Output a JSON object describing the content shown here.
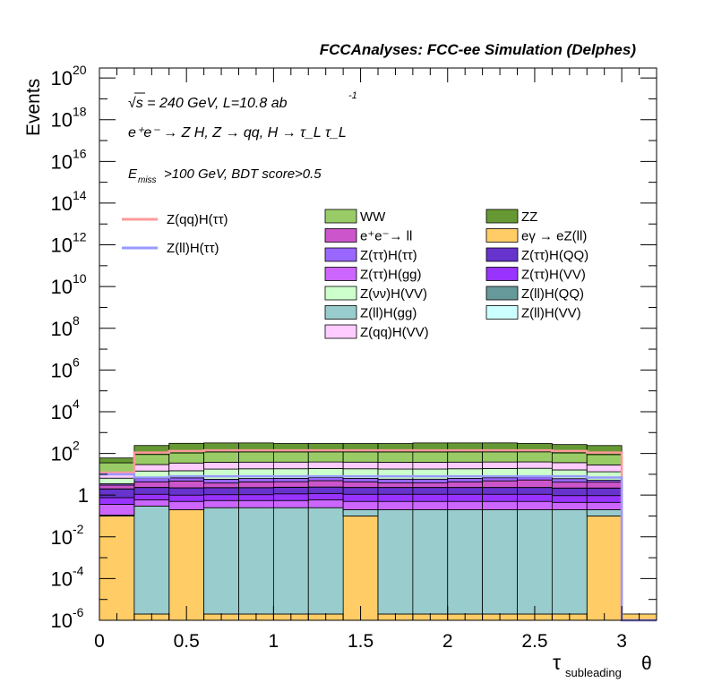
{
  "chart_data": {
    "type": "bar",
    "title": "FCCAnalyses: FCC-ee Simulation (Delphes)",
    "xlabel": {
      "main": "τ",
      "sub": "subleading",
      "tail": "θ"
    },
    "ylabel": "Events",
    "y_scale": "log",
    "xlim": [
      0,
      3.2
    ],
    "ylim": [
      1e-06,
      3e+20
    ],
    "annotations": {
      "energy": {
        "prefix": "√s = 240 GeV, L=10.8 ab",
        "sup": "-1"
      },
      "process": "e⁺e⁻ → Z H, Z → qq, H → τ_L τ_L",
      "cut": {
        "E": "E",
        "sub": "miss",
        "rest": ">100 GeV, BDT score>0.5"
      }
    },
    "x_ticks": [
      "0",
      "0.5",
      "1",
      "1.5",
      "2",
      "2.5",
      "3"
    ],
    "y_ticks": [
      {
        "v": 1e+20,
        "label": "10",
        "exp": "20"
      },
      {
        "v": 1e+18,
        "label": "10",
        "exp": "18"
      },
      {
        "v": 1e+16,
        "label": "10",
        "exp": "16"
      },
      {
        "v": 100000000000000.0,
        "label": "10",
        "exp": "14"
      },
      {
        "v": 1000000000000.0,
        "label": "10",
        "exp": "12"
      },
      {
        "v": 10000000000.0,
        "label": "10",
        "exp": "10"
      },
      {
        "v": 100000000.0,
        "label": "10",
        "exp": "8"
      },
      {
        "v": 1000000.0,
        "label": "10",
        "exp": "6"
      },
      {
        "v": 10000.0,
        "label": "10",
        "exp": "4"
      },
      {
        "v": 100.0,
        "label": "10",
        "exp": "2"
      },
      {
        "v": 1,
        "label": "1",
        "exp": ""
      },
      {
        "v": 0.01,
        "label": "10",
        "exp": "-2"
      },
      {
        "v": 0.0001,
        "label": "10",
        "exp": "-4"
      },
      {
        "v": 1e-06,
        "label": "10",
        "exp": "-6"
      }
    ],
    "bin_edges": [
      0,
      0.2,
      0.4,
      0.6,
      0.8,
      1.0,
      1.2,
      1.4,
      1.6,
      1.8,
      2.0,
      2.2,
      2.4,
      2.6,
      2.8,
      3.0,
      3.2
    ],
    "stack_bottom": 1e-06,
    "stack": [
      {
        "name": "eγ → eZ(ll)",
        "color": "#ffcc66",
        "values": [
          0.1,
          1e-06,
          0.2,
          1e-06,
          1e-06,
          1e-06,
          1e-06,
          0.1,
          1e-06,
          1e-06,
          1e-06,
          1e-06,
          1e-06,
          1e-06,
          0.1,
          1e-06
        ]
      },
      {
        "name": "Z(ll)H(gg)",
        "color": "#99cccc",
        "values": [
          0.01,
          0.3,
          0.0,
          0.25,
          0.25,
          0.25,
          0.25,
          0.1,
          0.2,
          0.2,
          0.2,
          0.2,
          0.2,
          0.2,
          0.1,
          0
        ]
      },
      {
        "name": "Z(ττ)H(gg)",
        "color": "#cc66ff",
        "values": [
          0.25,
          0.3,
          0.3,
          0.3,
          0.3,
          0.3,
          0.35,
          0.3,
          0.3,
          0.3,
          0.3,
          0.3,
          0.3,
          0.25,
          0.25,
          0
        ]
      },
      {
        "name": "Z(ττ)H(VV)",
        "color": "#9933ff",
        "values": [
          0.4,
          0.5,
          0.5,
          0.5,
          0.5,
          0.6,
          0.6,
          0.6,
          0.6,
          0.6,
          0.6,
          0.6,
          0.6,
          0.5,
          0.5,
          0
        ]
      },
      {
        "name": "Z(ττ)H(QQ)",
        "color": "#6633cc",
        "values": [
          1.2,
          1.2,
          1.2,
          1.2,
          1.2,
          1.2,
          1.2,
          1.2,
          1.2,
          1.2,
          1.2,
          1.2,
          1.2,
          1.2,
          1.2,
          0
        ]
      },
      {
        "name": "Z(ll)H(QQ)",
        "color": "#669999",
        "values": [
          0.02,
          0.02,
          0.02,
          0.02,
          0.02,
          0.02,
          0.02,
          0.02,
          0.02,
          0.02,
          0.02,
          0.02,
          0.02,
          0.02,
          0.02,
          0
        ]
      },
      {
        "name": "Z(ll)H(VV)",
        "color": "#ccffff",
        "values": [
          0.03,
          0.03,
          0.03,
          0.03,
          0.03,
          0.03,
          0.03,
          0.03,
          0.03,
          0.03,
          0.03,
          0.03,
          0.03,
          0.03,
          0.03,
          0
        ]
      },
      {
        "name": "e⁺e⁻→ ll",
        "color": "#cc55cc",
        "values": [
          1,
          2,
          2.5,
          1.5,
          2,
          2,
          2.5,
          2,
          1.5,
          1.5,
          2,
          2.5,
          3,
          2,
          2,
          0
        ]
      },
      {
        "name": "Z(ττ)H(ττ)",
        "color": "#9966ff",
        "values": [
          0.5,
          2,
          2,
          2,
          2,
          2,
          2,
          2,
          2,
          2,
          2,
          2,
          2,
          2,
          1,
          0
        ]
      },
      {
        "name": "Z(νν)H(VV)",
        "color": "#ccffcc",
        "values": [
          3,
          8,
          8,
          12,
          12,
          12,
          12,
          12,
          12,
          12,
          12,
          12,
          12,
          10,
          8,
          0
        ]
      },
      {
        "name": "Z(qq)H(VV)",
        "color": "#ffccff",
        "values": [
          4,
          15,
          20,
          20,
          20,
          20,
          20,
          20,
          20,
          20,
          20,
          20,
          20,
          20,
          15,
          0
        ]
      },
      {
        "name": "WW",
        "color": "#99cc66",
        "values": [
          25,
          60,
          70,
          80,
          80,
          80,
          80,
          80,
          80,
          80,
          80,
          80,
          80,
          70,
          60,
          0
        ]
      },
      {
        "name": "ZZ",
        "color": "#669933",
        "values": [
          25,
          150,
          200,
          200,
          200,
          180,
          180,
          180,
          180,
          200,
          200,
          200,
          180,
          160,
          150,
          0
        ]
      }
    ],
    "lines": [
      {
        "name": "Z(qq)H(ττ)",
        "color": "#ff9999",
        "values": [
          12,
          110,
          130,
          140,
          140,
          140,
          140,
          140,
          140,
          140,
          140,
          140,
          140,
          130,
          110,
          1e-06
        ]
      },
      {
        "name": "Z(ll)H(ττ)",
        "color": "#9999ff",
        "values": [
          10,
          7,
          8,
          8,
          8,
          8,
          8,
          8,
          8,
          8,
          8,
          8,
          8,
          8,
          7,
          1e-06
        ]
      }
    ],
    "legend_columns": [
      [
        "WW",
        "e⁺e⁻→ ll",
        "Z(ττ)H(ττ)",
        "Z(ττ)H(gg)",
        "Z(νν)H(VV)",
        "Z(ll)H(gg)",
        "Z(qq)H(VV)"
      ],
      [
        "ZZ",
        "eγ → eZ(ll)",
        "Z(ττ)H(QQ)",
        "Z(ττ)H(VV)",
        "Z(ll)H(QQ)",
        "Z(ll)H(VV)"
      ]
    ]
  }
}
